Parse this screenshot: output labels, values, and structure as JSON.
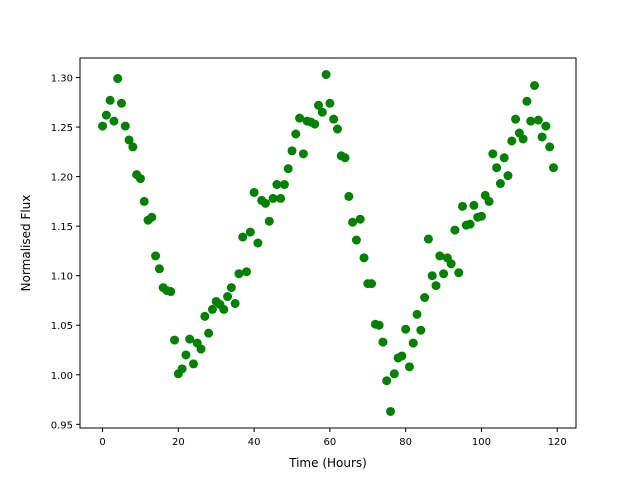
{
  "chart_data": {
    "type": "scatter",
    "color": "#008000",
    "xlabel": "Time (Hours)",
    "ylabel": "Normalised Flux",
    "x": [
      0,
      1,
      2,
      3,
      4,
      5,
      6,
      7,
      8,
      9,
      10,
      11,
      12,
      13,
      14,
      15,
      16,
      17,
      18,
      19,
      20,
      21,
      22,
      23,
      24,
      25,
      26,
      27,
      28,
      29,
      30,
      31,
      32,
      33,
      34,
      35,
      36,
      37,
      38,
      39,
      40,
      41,
      42,
      43,
      44,
      45,
      46,
      47,
      48,
      49,
      50,
      51,
      52,
      53,
      54,
      55,
      56,
      57,
      58,
      59,
      60,
      61,
      62,
      63,
      64,
      65,
      66,
      67,
      68,
      69,
      70,
      71,
      72,
      73,
      74,
      75,
      76,
      77,
      78,
      79,
      80,
      81,
      82,
      83,
      84,
      85,
      86,
      87,
      88,
      89,
      90,
      91,
      92,
      93,
      94,
      95,
      96,
      97,
      98,
      99,
      100,
      101,
      102,
      103,
      104,
      105,
      106,
      107,
      108,
      109,
      110,
      111,
      112,
      113,
      114,
      115,
      116,
      117,
      118,
      119
    ],
    "values": [
      1.251,
      1.262,
      1.277,
      1.256,
      1.299,
      1.274,
      1.251,
      1.237,
      1.23,
      1.202,
      1.198,
      1.175,
      1.156,
      1.159,
      1.12,
      1.107,
      1.088,
      1.085,
      1.084,
      1.035,
      1.001,
      1.006,
      1.02,
      1.036,
      1.011,
      1.032,
      1.026,
      1.059,
      1.042,
      1.066,
      1.074,
      1.071,
      1.066,
      1.079,
      1.088,
      1.072,
      1.102,
      1.139,
      1.104,
      1.144,
      1.184,
      1.133,
      1.176,
      1.173,
      1.155,
      1.178,
      1.192,
      1.178,
      1.192,
      1.208,
      1.226,
      1.243,
      1.259,
      1.223,
      1.256,
      1.255,
      1.253,
      1.272,
      1.265,
      1.303,
      1.274,
      1.258,
      1.248,
      1.221,
      1.219,
      1.18,
      1.154,
      1.136,
      1.157,
      1.118,
      1.092,
      1.092,
      1.051,
      1.05,
      1.033,
      0.994,
      0.963,
      1.001,
      1.017,
      1.019,
      1.046,
      1.008,
      1.032,
      1.061,
      1.045,
      1.078,
      1.137,
      1.1,
      1.09,
      1.12,
      1.102,
      1.118,
      1.112,
      1.146,
      1.103,
      1.17,
      1.151,
      1.152,
      1.171,
      1.159,
      1.16,
      1.181,
      1.175,
      1.223,
      1.209,
      1.193,
      1.219,
      1.201,
      1.236,
      1.258,
      1.244,
      1.238,
      1.276,
      1.256,
      1.292,
      1.257,
      1.24,
      1.251,
      1.23,
      1.209
    ],
    "xlim": [
      -5.95,
      124.95
    ],
    "xticks": [
      0,
      20,
      40,
      60,
      80,
      100,
      120
    ],
    "ylim": [
      0.9463,
      1.3197
    ],
    "yticks": [
      0.95,
      {
        "value": 1,
        "label": "1.00"
      },
      1.05,
      {
        "value": 1.1,
        "label": "1.10"
      },
      1.15,
      {
        "value": 1.2,
        "label": "1.20"
      },
      1.25,
      {
        "value": 1.3,
        "label": "1.30"
      }
    ]
  }
}
